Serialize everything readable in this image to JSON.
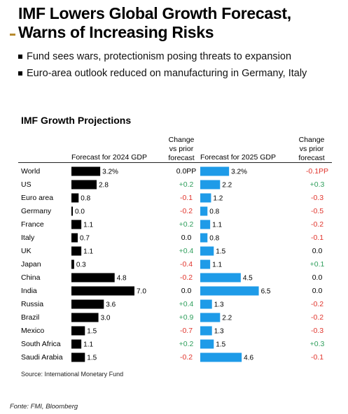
{
  "headline": {
    "line1": "IMF Lowers Global Growth Forecast,",
    "line2": "Warns of Increasing Risks"
  },
  "bullets": [
    "Fund sees wars, protectionism posing threats to expansion",
    "Euro-area outlook reduced on manufacturing in Germany, Italy"
  ],
  "colors": {
    "bar_2024": "#000000",
    "bar_2025": "#1e9be8",
    "positive": "#2e9e5b",
    "negative": "#e0332b",
    "neutral": "#000000",
    "accent": "#b88a2e"
  },
  "chart_data": {
    "type": "bar",
    "title": "IMF Growth Projections",
    "columns": {
      "gdp_2024": "Forecast for 2024 GDP",
      "change_2024_line1": "Change",
      "change_2024_line2": "vs prior",
      "change_2024_line3": "forecast",
      "gdp_2025": "Forecast for 2025 GDP",
      "change_2025_line1": "Change",
      "change_2025_line2": "vs prior",
      "change_2025_line3": "forecast"
    },
    "categories": [
      "World",
      "US",
      "Euro area",
      "Germany",
      "France",
      "Italy",
      "UK",
      "Japan",
      "China",
      "India",
      "Russia",
      "Brazil",
      "Mexico",
      "South Africa",
      "Saudi Arabia"
    ],
    "series": [
      {
        "name": "Forecast for 2024 GDP",
        "values": [
          3.2,
          2.8,
          0.8,
          0.0,
          1.1,
          0.7,
          1.1,
          0.3,
          4.8,
          7.0,
          3.6,
          3.0,
          1.5,
          1.1,
          1.5
        ],
        "labels": [
          "3.2%",
          "2.8",
          "0.8",
          "0.0",
          "1.1",
          "0.7",
          "1.1",
          "0.3",
          "4.8",
          "7.0",
          "3.6",
          "3.0",
          "1.5",
          "1.1",
          "1.5"
        ]
      },
      {
        "name": "Forecast for 2025 GDP",
        "values": [
          3.2,
          2.2,
          1.2,
          0.8,
          1.1,
          0.8,
          1.5,
          1.1,
          4.5,
          6.5,
          1.3,
          2.2,
          1.3,
          1.5,
          4.6
        ],
        "labels": [
          "3.2%",
          "2.2",
          "1.2",
          "0.8",
          "1.1",
          "0.8",
          "1.5",
          "1.1",
          "4.5",
          "6.5",
          "1.3",
          "2.2",
          "1.3",
          "1.5",
          "4.6"
        ]
      }
    ],
    "change_2024": [
      "0.0PP",
      "+0.2",
      "-0.1",
      "-0.2",
      "+0.2",
      "0.0",
      "+0.4",
      "-0.4",
      "-0.2",
      "0.0",
      "+0.4",
      "+0.9",
      "-0.7",
      "+0.2",
      "-0.2"
    ],
    "change_2025": [
      "-0.1PP",
      "+0.3",
      "-0.3",
      "-0.5",
      "-0.2",
      "-0.1",
      "0.0",
      "+0.1",
      "0.0",
      "0.0",
      "-0.2",
      "-0.2",
      "-0.3",
      "+0.3",
      "-0.1"
    ],
    "xlim": [
      0,
      7
    ]
  },
  "source": "Source: International Monetary Fund",
  "credit": "Fonte: FMI, Bloomberg"
}
